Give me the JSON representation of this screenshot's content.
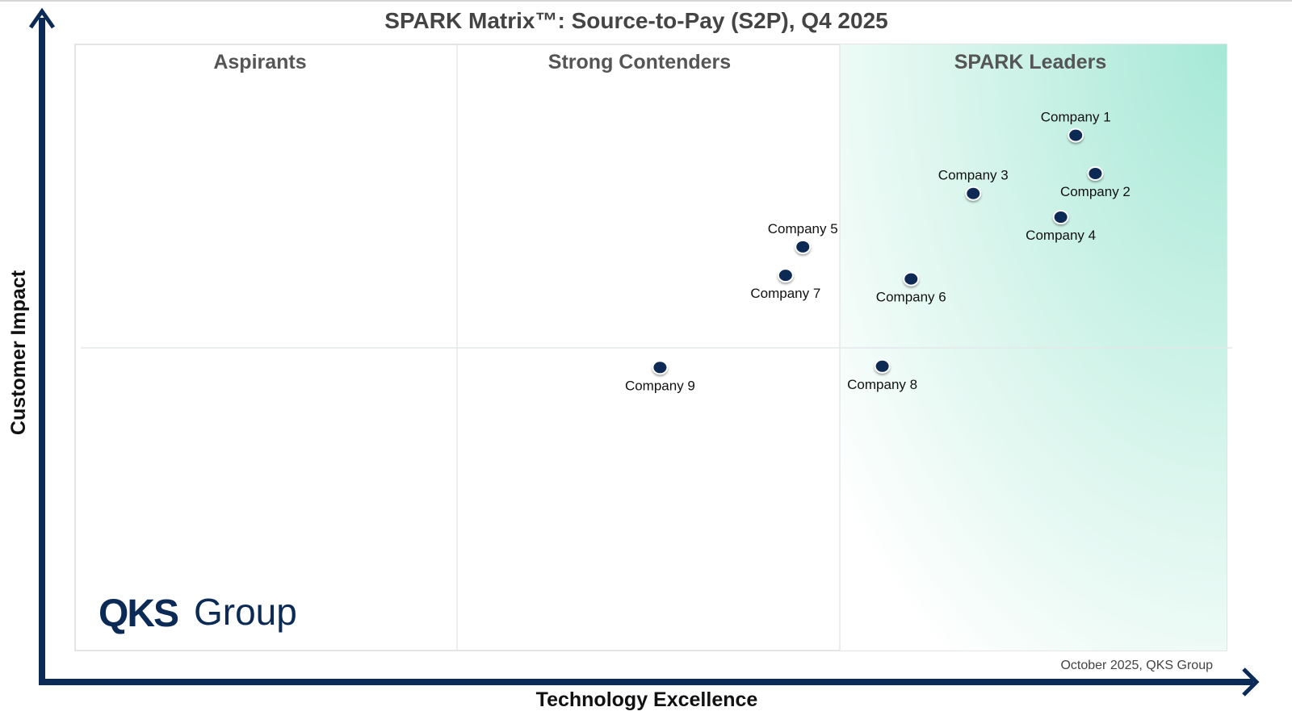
{
  "chart_data": {
    "type": "scatter",
    "title": "SPARK Matrix™: Source-to-Pay (S2P), Q4 2025",
    "xlabel": "Technology Excellence",
    "ylabel": "Customer Impact",
    "xlim": [
      0,
      100
    ],
    "ylim": [
      0,
      100
    ],
    "grid": false,
    "quadrants": [
      "Aspirants",
      "Strong Contenders",
      "SPARK Leaders"
    ],
    "points": [
      {
        "name": "Company 1",
        "x": 86.9,
        "y": 85.0,
        "label_position": "above"
      },
      {
        "name": "Company 2",
        "x": 88.6,
        "y": 78.7,
        "label_position": "below"
      },
      {
        "name": "Company 3",
        "x": 78.0,
        "y": 75.4,
        "label_position": "above"
      },
      {
        "name": "Company 4",
        "x": 85.6,
        "y": 71.5,
        "label_position": "below"
      },
      {
        "name": "Company 5",
        "x": 63.2,
        "y": 66.6,
        "label_position": "above"
      },
      {
        "name": "Company 6",
        "x": 72.6,
        "y": 61.3,
        "label_position": "below"
      },
      {
        "name": "Company 7",
        "x": 61.7,
        "y": 61.9,
        "label_position": "below"
      },
      {
        "name": "Company 8",
        "x": 70.1,
        "y": 46.9,
        "label_position": "below"
      },
      {
        "name": "Company 9",
        "x": 50.8,
        "y": 46.7,
        "label_position": "below"
      }
    ],
    "colors": {
      "point": "#0b2a55",
      "axis": "#0b2a55",
      "leaders_gradient": "#a6e8d6"
    }
  },
  "logo": {
    "bold": "QKS",
    "regular": "Group"
  },
  "source": "October 2025, QKS Group"
}
